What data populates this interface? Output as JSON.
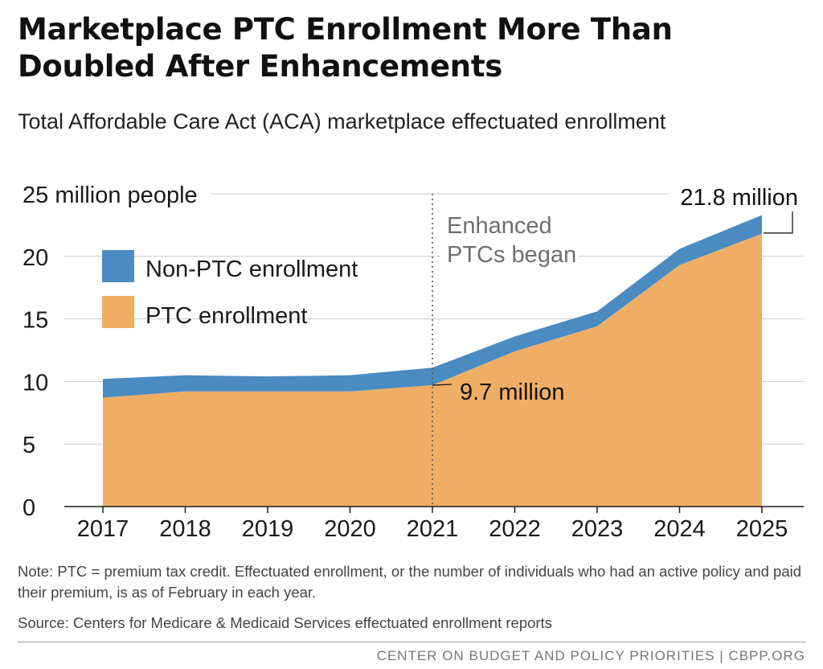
{
  "title": "Marketplace PTC Enrollment More Than Doubled After Enhancements",
  "subtitle": "Total Affordable Care Act (ACA) marketplace effectuated enrollment",
  "chart_data": {
    "type": "area",
    "stacked": true,
    "x": [
      "2017",
      "2018",
      "2019",
      "2020",
      "2021",
      "2022",
      "2023",
      "2024",
      "2025"
    ],
    "series": [
      {
        "name": "PTC enrollment",
        "color": "#f0ae65",
        "values": [
          8.7,
          9.2,
          9.2,
          9.2,
          9.7,
          12.4,
          14.4,
          19.3,
          21.8
        ]
      },
      {
        "name": "Non-PTC enrollment",
        "color": "#4a8bc2",
        "values": [
          1.5,
          1.3,
          1.2,
          1.3,
          1.4,
          1.2,
          1.2,
          1.3,
          1.5
        ]
      }
    ],
    "ylim": [
      0,
      25
    ],
    "yticks": [
      0,
      5,
      10,
      15,
      20,
      25
    ],
    "ytick_labels": [
      "0",
      "5",
      "10",
      "15",
      "20",
      "25 million people"
    ],
    "grid": true,
    "legend_placement": "upper-left",
    "annotations": {
      "marker_year": "2021",
      "marker_label_line1": "Enhanced",
      "marker_label_line2": "PTCs began",
      "label_2021": "9.7 million",
      "label_2025": "21.8 million"
    }
  },
  "note": "Note: PTC = premium tax credit. Effectuated enrollment, or the number of individuals who had an active policy and paid their premium, is as of February in each year.",
  "source": "Source: Centers for Medicare & Medicaid Services effectuated enrollment reports",
  "footer": "CENTER ON BUDGET AND POLICY PRIORITIES | CBPP.ORG"
}
